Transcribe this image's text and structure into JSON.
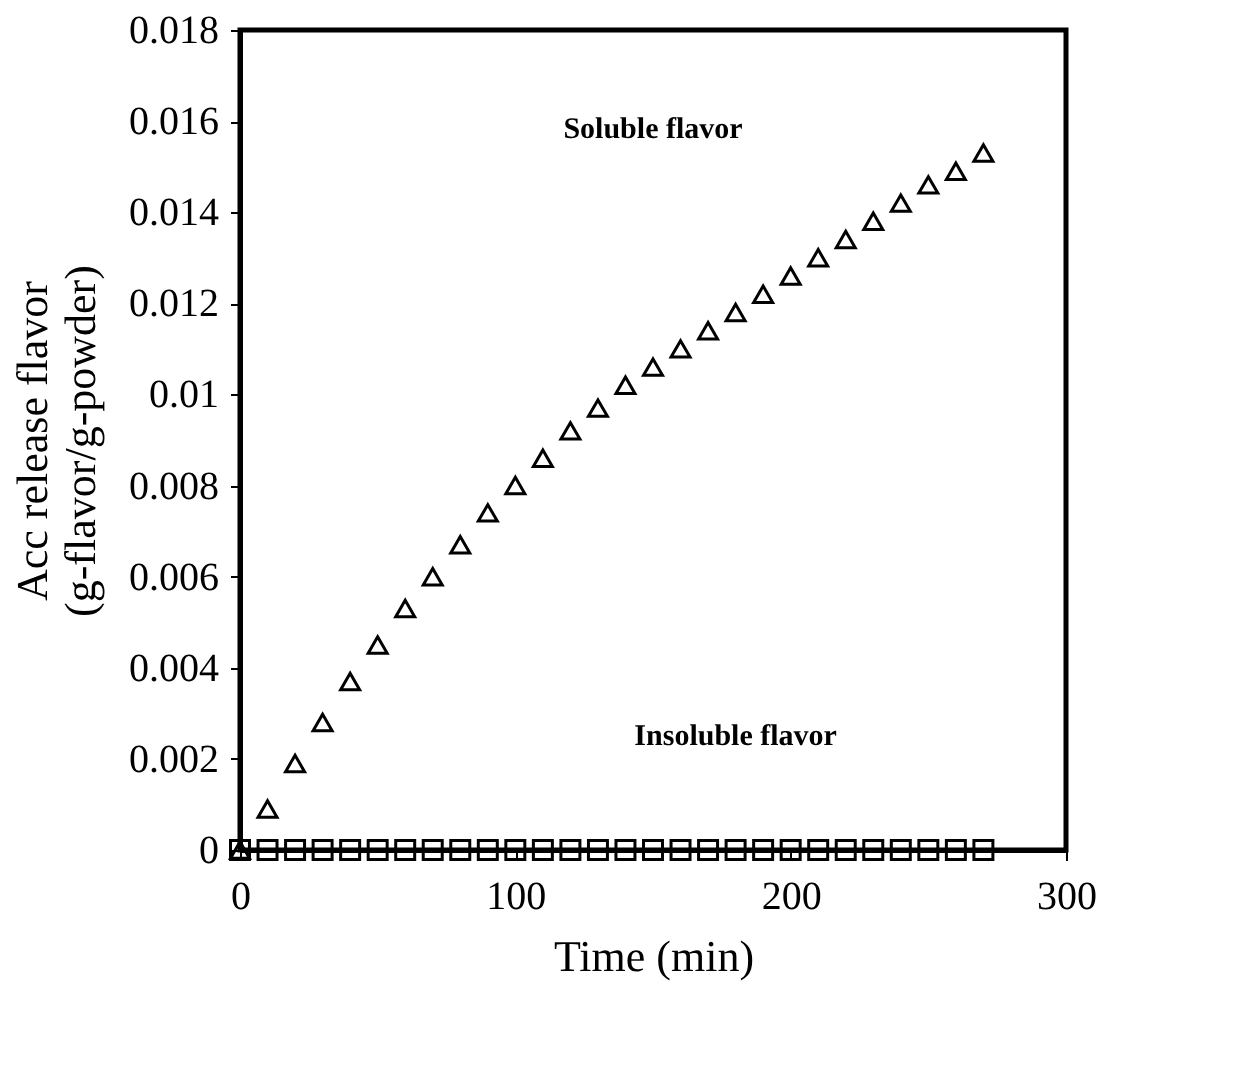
{
  "chart_data": {
    "type": "scatter",
    "xlabel": "Time (min)",
    "ylabel": "Acc release flavor\n(g-flavor/g-powder)",
    "x": [
      0,
      10,
      20,
      30,
      40,
      50,
      60,
      70,
      80,
      90,
      100,
      110,
      120,
      130,
      140,
      150,
      160,
      170,
      180,
      190,
      200,
      210,
      220,
      230,
      240,
      250,
      260,
      270
    ],
    "series": [
      {
        "color": "#000000",
        "marker": "triangle",
        "values": [
          0,
          0.0009,
          0.0019,
          0.0028,
          0.0037,
          0.0045,
          0.0053,
          0.006,
          0.0067,
          0.0074,
          0.008,
          0.0086,
          0.0092,
          0.0097,
          0.0102,
          0.0106,
          0.011,
          0.0114,
          0.0118,
          0.0122,
          0.0126,
          0.013,
          0.0134,
          0.0138,
          0.0142,
          0.0146,
          0.0149,
          0.0153
        ]
      },
      {
        "color": "#000000",
        "marker": "square",
        "values": [
          0,
          0,
          0,
          0,
          0,
          0,
          0,
          0,
          0,
          0,
          0,
          0,
          0,
          0,
          0,
          0,
          0,
          0,
          0,
          0,
          0,
          0,
          0,
          0,
          0,
          0,
          0,
          0
        ]
      }
    ],
    "xlim": [
      0,
      300
    ],
    "xticks": [
      0,
      100,
      200,
      300
    ],
    "ylim": [
      0,
      0.018
    ],
    "yticks": [
      0,
      0.002,
      0.004,
      0.006,
      0.008,
      0.01,
      0.012,
      0.014,
      0.016,
      0.018
    ],
    "annotations": [
      "Soluble flavor",
      "Insoluble flavor"
    ],
    "grid": false
  }
}
